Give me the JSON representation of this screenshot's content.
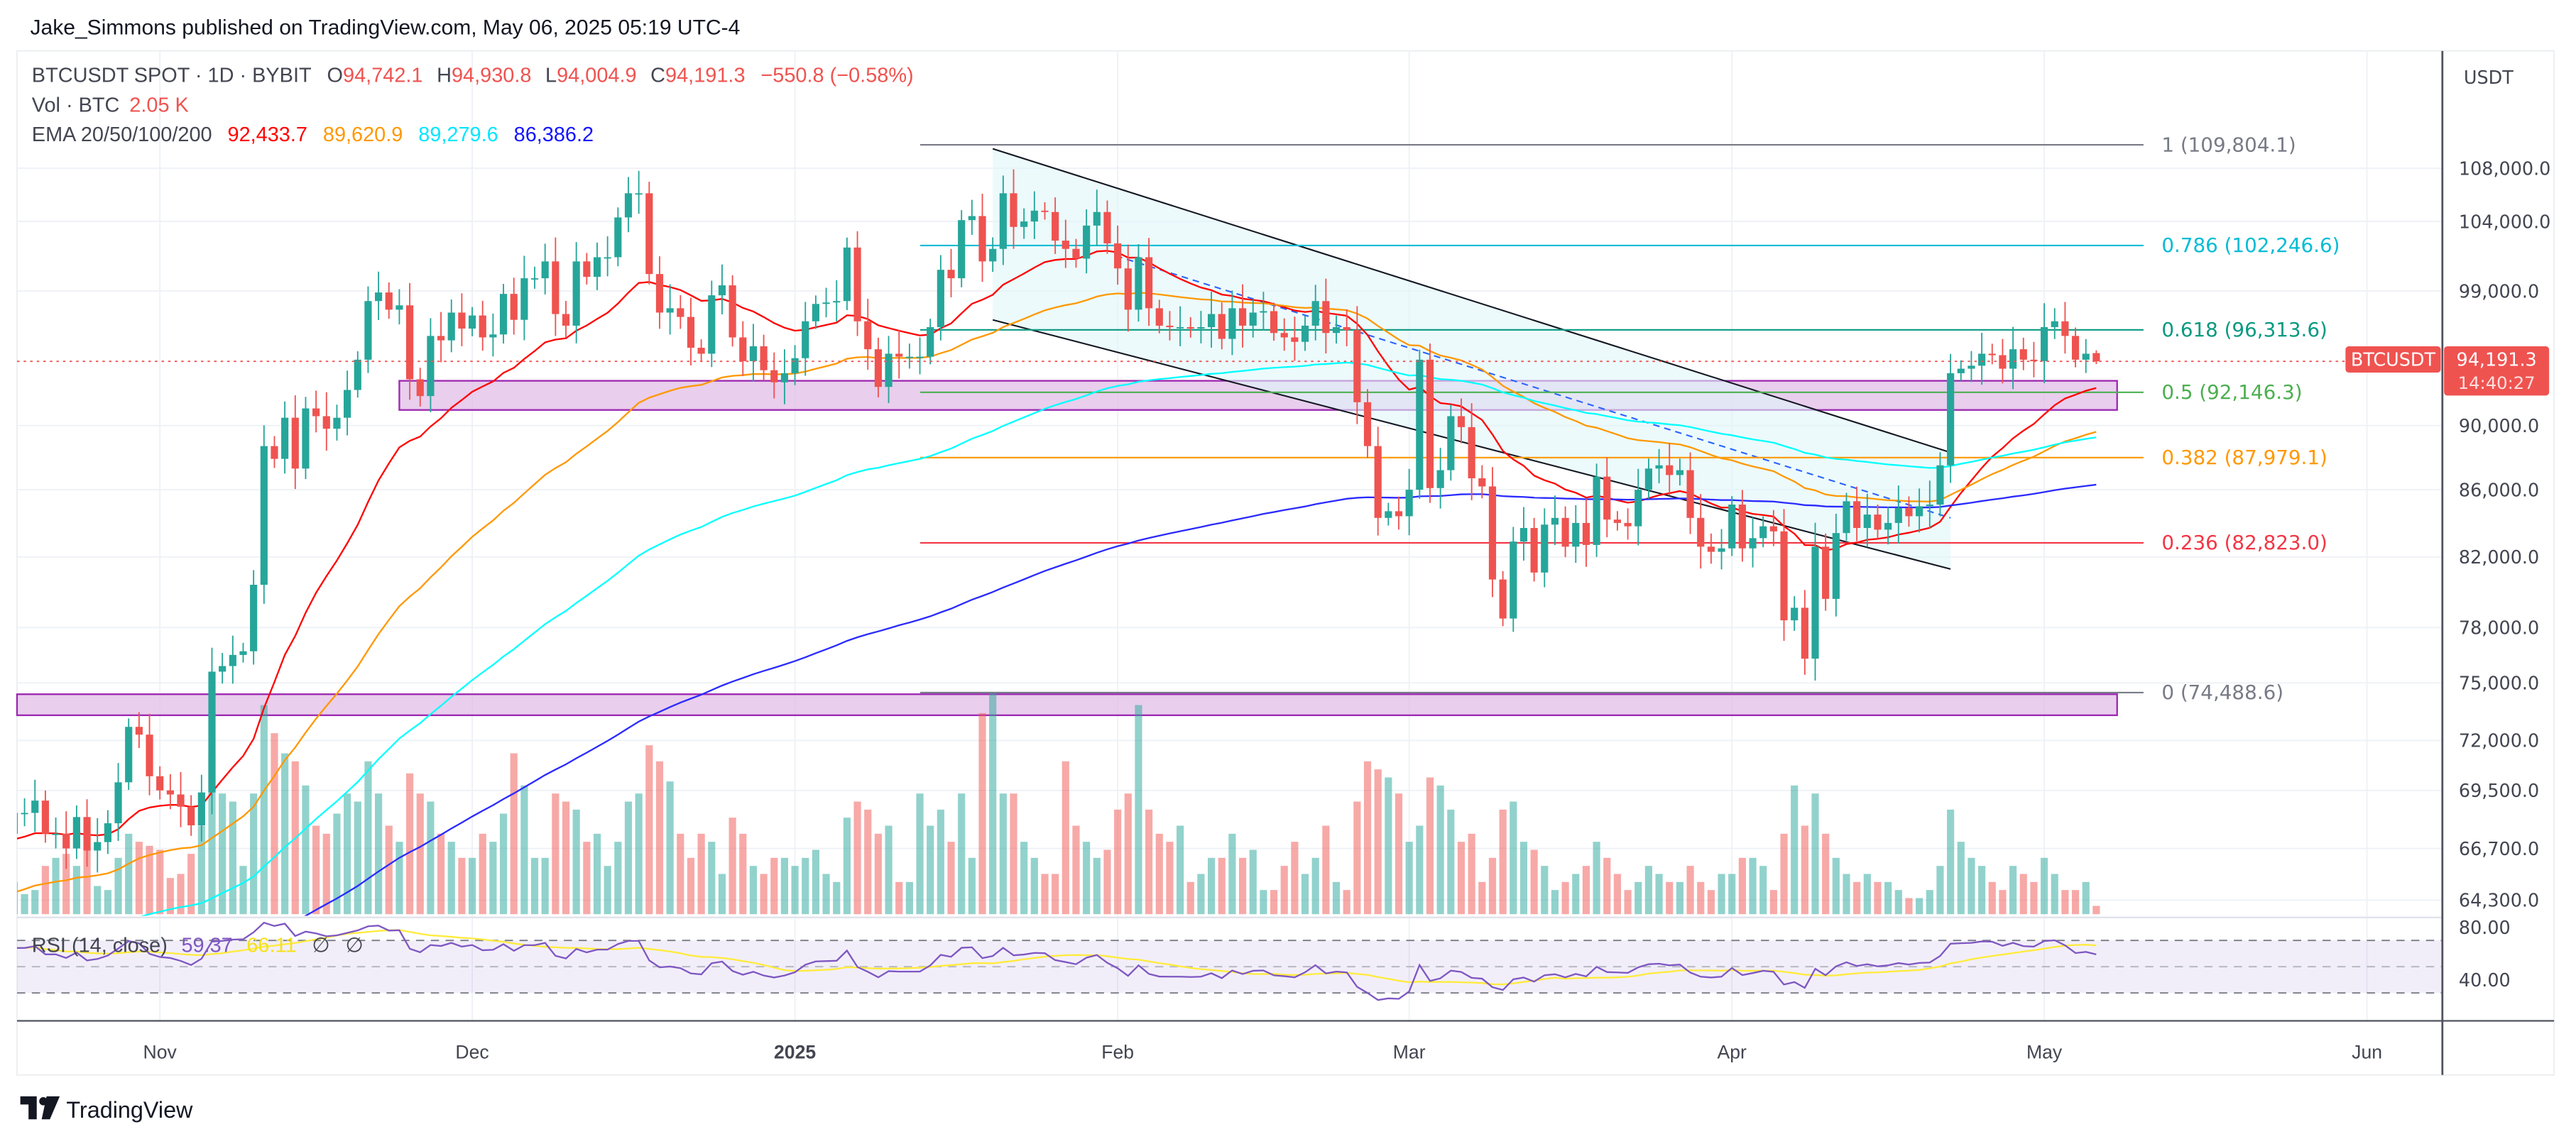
{
  "header": {
    "publisher_line": "Jake_Simmons published on TradingView.com, May 06, 2025 05:19 UTC-4"
  },
  "legend": {
    "symbol": "BTCUSDT SPOT · 1D · BYBIT",
    "o_label": "O",
    "o": "94,742.1",
    "h_label": "H",
    "h": "94,930.8",
    "l_label": "L",
    "l": "94,004.9",
    "c_label": "C",
    "c": "94,191.3",
    "change": "−550.8 (−0.58%)",
    "vol_label": "Vol · BTC",
    "vol": "2.05 K",
    "ema_label": "EMA 20/50/100/200",
    "ema20": "92,433.7",
    "ema50": "89,620.9",
    "ema100": "89,279.6",
    "ema200": "86,386.2",
    "rsi_label": "RSI (14, close)",
    "rsi": "59.37",
    "rsi_ma": "66.11",
    "na1": "∅",
    "na2": "∅"
  },
  "price_axis": {
    "currency": "USDT",
    "ticks": [
      108000,
      104000,
      99000,
      90000,
      86000,
      82000,
      78000,
      75000,
      72000,
      69500,
      66700,
      64300
    ],
    "tick_labels": [
      "108,000.0",
      "104,000.0",
      "99,000.0",
      "90,000.0",
      "86,000.0",
      "82,000.0",
      "78,000.0",
      "75,000.0",
      "72,000.0",
      "69,500.0",
      "66,700.0",
      "64,300.0"
    ],
    "scale": "log"
  },
  "rsi_axis": {
    "tick_labels": [
      "80.00",
      "40.00"
    ],
    "ticks": [
      80,
      40
    ],
    "bands": [
      70,
      50,
      30
    ]
  },
  "time_axis": {
    "labels": [
      "Nov",
      "Dec",
      "2025",
      "Feb",
      "Mar",
      "Apr",
      "May",
      "Jun"
    ]
  },
  "last_price": {
    "symbol_tag": "BTCUSDT",
    "price": "94,191.3",
    "countdown": "14:40:27",
    "color": "#ef5350"
  },
  "fib_levels": [
    {
      "ratio": 1,
      "price": 109804.1,
      "label": "1 (109,804.1)",
      "color": "#787b86"
    },
    {
      "ratio": 0.786,
      "price": 102246.6,
      "label": "0.786 (102,246.6)",
      "color": "#00bcd4"
    },
    {
      "ratio": 0.618,
      "price": 96313.6,
      "label": "0.618 (96,313.6)",
      "color": "#089981"
    },
    {
      "ratio": 0.5,
      "price": 92146.3,
      "label": "0.5 (92,146.3)",
      "color": "#4caf50"
    },
    {
      "ratio": 0.382,
      "price": 87979.1,
      "label": "0.382 (87,979.1)",
      "color": "#ff9800"
    },
    {
      "ratio": 0.236,
      "price": 82823.0,
      "label": "0.236 (82,823.0)",
      "color": "#f23645"
    },
    {
      "ratio": 0,
      "price": 74488.6,
      "label": "0 (74,488.6)",
      "color": "#787b86"
    }
  ],
  "zones": [
    {
      "from": "2024-11-24",
      "to": "2025-05-08",
      "low": 91000,
      "high": 92900,
      "color": "#9c27b0"
    },
    {
      "from": "2024-10-18",
      "to": "2025-05-08",
      "low": 73300,
      "high": 74400,
      "color": "#9c27b0"
    }
  ],
  "colors": {
    "up": "#26a69a",
    "down": "#ef5350",
    "ema20": "#ff0000",
    "ema50": "#ff9800",
    "ema100": "#00ffff",
    "ema200": "#2a2aff",
    "rsi": "#7e57c2",
    "rsi_ma": "#ffeb3b"
  },
  "chart_data": {
    "type": "candlestick",
    "title": "BTCUSDT SPOT · 1D · BYBIT",
    "y_scale": "log",
    "ylim": [
      63000,
      112000
    ],
    "grid": true,
    "months": [
      {
        "month": "2024-10",
        "from_day": 18,
        "close": [
          68400,
          68400,
          69000,
          67400,
          67400,
          66700,
          68200,
          66600,
          67000,
          67900,
          69900,
          72700,
          72300,
          70200
        ],
        "volume_k": [
          8,
          5,
          6,
          12,
          14,
          15,
          12,
          16,
          7,
          6,
          14,
          20,
          18,
          17
        ]
      },
      {
        "month": "2024-11",
        "from_day": 1,
        "close": [
          69500,
          69300,
          68700,
          67800,
          69400,
          75600,
          75900,
          76500,
          76700,
          80400,
          88700,
          87900,
          90500,
          87300,
          91100,
          90600,
          89800,
          90500,
          92300,
          94300,
          98300,
          98900,
          97700,
          98000,
          93000,
          91900,
          95900,
          95600,
          97500,
          96400
        ],
        "volume_k": [
          16,
          9,
          10,
          15,
          22,
          40,
          30,
          28,
          12,
          30,
          52,
          45,
          40,
          38,
          32,
          22,
          20,
          25,
          30,
          28,
          38,
          30,
          22,
          18,
          35,
          30,
          28,
          20,
          18,
          14
        ]
      },
      {
        "month": "2024-12",
        "from_day": 1,
        "close": [
          97300,
          95800,
          96000,
          98800,
          97000,
          99900,
          99900,
          101100,
          97400,
          96600,
          101100,
          100000,
          101400,
          101400,
          104300,
          106100,
          106100,
          100200,
          97500,
          97800,
          97200,
          95100,
          94700,
          98700,
          99400,
          95800,
          94200,
          95200,
          93600,
          92800,
          93400
        ],
        "volume_k": [
          14,
          20,
          18,
          25,
          40,
          32,
          14,
          14,
          30,
          28,
          26,
          18,
          20,
          12,
          18,
          28,
          30,
          42,
          38,
          33,
          20,
          14,
          20,
          18,
          10,
          24,
          20,
          12,
          10,
          14,
          14
        ]
      },
      {
        "month": "2025-01",
        "from_day": 1,
        "close": [
          94400,
          96900,
          98100,
          98200,
          98300,
          102100,
          96900,
          95000,
          92500,
          94700,
          94500,
          94500,
          94500,
          96500,
          100500,
          99900,
          104100,
          104400,
          101100,
          102000,
          106100,
          103600,
          104000,
          104800,
          104700,
          102600,
          102000,
          101300,
          103700,
          104700,
          102400
        ],
        "volume_k": [
          12,
          14,
          16,
          10,
          8,
          24,
          28,
          26,
          20,
          22,
          8,
          8,
          30,
          22,
          26,
          18,
          30,
          14,
          50,
          55,
          30,
          30,
          18,
          14,
          10,
          10,
          38,
          22,
          18,
          14,
          16
        ]
      },
      {
        "month": "2025-02",
        "from_day": 1,
        "close": [
          100600,
          97700,
          101400,
          97800,
          96600,
          96500,
          96500,
          96400,
          96500,
          97400,
          95700,
          97800,
          96600,
          97500,
          97600,
          96100,
          95800,
          95500,
          96600,
          98300,
          96100,
          96500,
          96300,
          91500,
          88700,
          84300,
          84700,
          84400
        ],
        "volume_k": [
          26,
          30,
          52,
          26,
          20,
          18,
          22,
          8,
          10,
          14,
          14,
          20,
          14,
          16,
          6,
          6,
          12,
          18,
          10,
          14,
          22,
          8,
          6,
          28,
          38,
          36,
          34,
          30
        ]
      },
      {
        "month": "2025-03",
        "from_day": 1,
        "close": [
          86000,
          94300,
          86100,
          87200,
          90600,
          89900,
          86700,
          86200,
          80700,
          78500,
          82900,
          83700,
          81100,
          83900,
          84300,
          82600,
          84000,
          82700,
          86800,
          84200,
          84000,
          83800,
          86000,
          87300,
          87500,
          86900,
          87200,
          84300,
          82600,
          82300,
          82500
        ],
        "volume_k": [
          18,
          22,
          34,
          32,
          26,
          18,
          20,
          8,
          14,
          26,
          28,
          18,
          16,
          12,
          6,
          8,
          10,
          12,
          18,
          14,
          10,
          6,
          8,
          12,
          10,
          8,
          8,
          12,
          8,
          6,
          10
        ]
      },
      {
        "month": "2025-04",
        "from_day": 1,
        "close": [
          85100,
          82500,
          83100,
          83800,
          83500,
          78400,
          79100,
          76300,
          82600,
          79600,
          83400,
          85300,
          83700,
          84500,
          83600,
          84000,
          84900,
          84400,
          85000,
          85100,
          87500,
          93400,
          93700,
          93900,
          94700,
          94600,
          93700,
          95000,
          94300,
          94200
        ],
        "volume_k": [
          10,
          14,
          14,
          12,
          6,
          20,
          32,
          22,
          30,
          20,
          14,
          10,
          8,
          10,
          8,
          8,
          6,
          4,
          4,
          6,
          12,
          26,
          18,
          14,
          12,
          8,
          6,
          12,
          10,
          8
        ]
      },
      {
        "month": "2025-05",
        "from_day": 1,
        "close": [
          96500,
          96900,
          95900,
          94300,
          94700,
          94191.3
        ],
        "volume_k": [
          14,
          10,
          6,
          6,
          8,
          2.05
        ]
      }
    ],
    "last_candle": {
      "open": 94742.1,
      "high": 94930.8,
      "low": 94004.9,
      "close": 94191.3
    },
    "indicators": [
      "EMA 20",
      "EMA 50",
      "EMA 100",
      "EMA 200",
      "RSI (14, close)"
    ],
    "trend_channel": {
      "from": "2025-01-20",
      "to": "2025-04-22",
      "upper": [
        109500,
        88300
      ],
      "lower": [
        97000,
        81300
      ]
    }
  },
  "footer": {
    "brand": "TradingView"
  }
}
